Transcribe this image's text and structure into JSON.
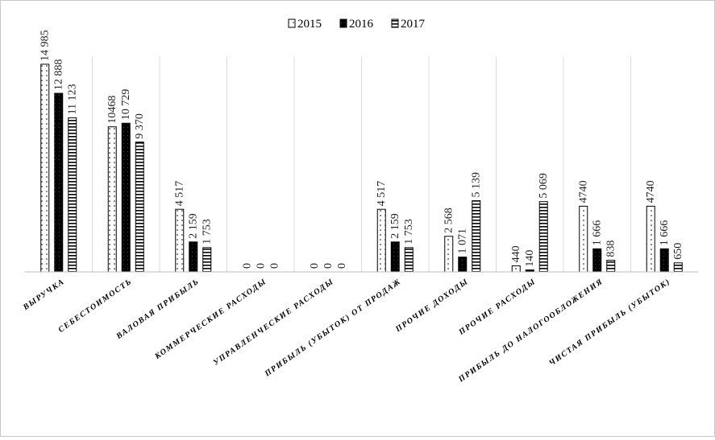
{
  "chart_data": {
    "type": "bar",
    "title": "",
    "xlabel": "",
    "ylabel": "",
    "legend_position": "top",
    "grid": true,
    "categories": [
      "ВЫРУЧКА",
      "СЕБЕСТОИМОСТЬ",
      "ВАЛОВАЯ ПРИБЫЛЬ",
      "КОММЕРЧЕСКИЕ РАСХОДЫ",
      "УПРАВЛЕНЧЕСКИЕ РАСХОДЫ",
      "ПРИБЫЛЬ (УБЫТОК) ОТ ПРОДАЖ",
      "ПРОЧИЕ ДОХОДЫ",
      "ПРОЧИЕ РАСХОДЫ",
      "ПРИБЫЛЬ ДО НАЛОГООБЛОЖЕНИЯ",
      "ЧИСТАЯ ПРИБЫЛЬ (УБЫТОК)"
    ],
    "series": [
      {
        "name": "2015",
        "pattern": "dotted",
        "values": [
          14985,
          10468,
          4517,
          0,
          0,
          4517,
          2568,
          440,
          4740,
          4740
        ],
        "labels": [
          "14 985",
          "10468",
          "4 517",
          "0",
          "0",
          "4 517",
          "2 568",
          "440",
          "4740",
          "4740"
        ]
      },
      {
        "name": "2016",
        "pattern": "solid-black",
        "values": [
          12888,
          10729,
          2159,
          0,
          0,
          2159,
          1071,
          140,
          1666,
          1666
        ],
        "labels": [
          "12 888",
          "10 729",
          "2 159",
          "0",
          "0",
          "2 159",
          "1 071",
          "140",
          "1 666",
          "1 666"
        ]
      },
      {
        "name": "2017",
        "pattern": "horizontal-lines",
        "values": [
          11123,
          9370,
          1753,
          0,
          0,
          1753,
          5139,
          5069,
          838,
          650
        ],
        "labels": [
          "11 123",
          "9 370",
          "1 753",
          "0",
          "0",
          "1 753",
          "5 139",
          "5 069",
          "838",
          "650"
        ]
      }
    ],
    "ylim": [
      0,
      15500
    ]
  }
}
